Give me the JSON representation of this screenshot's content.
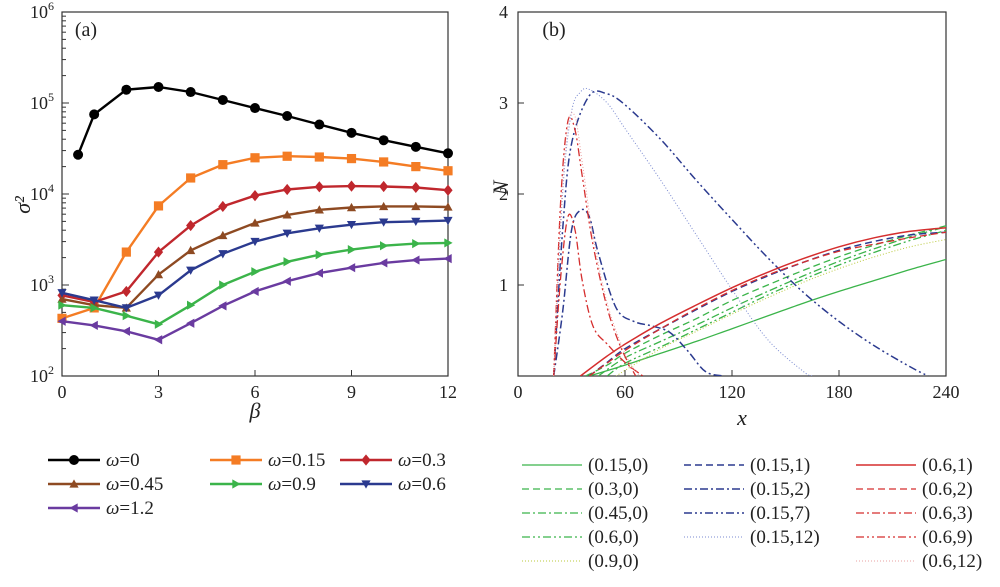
{
  "chart_data": [
    {
      "panel": "(a)",
      "type": "line",
      "xlabel": "β",
      "ylabel": "σ²",
      "xlim": [
        0,
        12
      ],
      "ylim": [
        100,
        1000000
      ],
      "y_scale": "log",
      "xticks": [
        "0",
        "3",
        "6",
        "9",
        "12"
      ],
      "yticks": [
        {
          "base": "10",
          "exp": "2",
          "value": 100
        },
        {
          "base": "10",
          "exp": "3",
          "value": 1000
        },
        {
          "base": "10",
          "exp": "4",
          "value": 10000
        },
        {
          "base": "10",
          "exp": "5",
          "value": 100000
        },
        {
          "base": "10",
          "exp": "6",
          "value": 1000000
        }
      ],
      "legend_placement": "below",
      "series": [
        {
          "label_sym": "ω",
          "label_val": "=0",
          "color": "#000000",
          "marker": "circle",
          "x": [
            0.5,
            1,
            2,
            3,
            4,
            5,
            6,
            7,
            8,
            9,
            10,
            11,
            12
          ],
          "y": [
            27000,
            75000,
            140000,
            150000,
            132000,
            108000,
            88000,
            72000,
            58000,
            47000,
            39000,
            33000,
            28000
          ]
        },
        {
          "label_sym": "ω",
          "label_val": "=0.15",
          "color": "#f47c24",
          "marker": "square",
          "x": [
            0,
            1,
            2,
            3,
            4,
            5,
            6,
            7,
            8,
            9,
            10,
            11,
            12
          ],
          "y": [
            430,
            560,
            2300,
            7400,
            15000,
            21000,
            25000,
            26000,
            25500,
            24500,
            22500,
            20000,
            18000
          ]
        },
        {
          "label_sym": "ω",
          "label_val": "=0.3",
          "color": "#c0272d",
          "marker": "diamond",
          "x": [
            0,
            1,
            2,
            3,
            4,
            5,
            6,
            7,
            8,
            9,
            10,
            11,
            12
          ],
          "y": [
            770,
            650,
            850,
            2300,
            4500,
            7300,
            9600,
            11200,
            12000,
            12200,
            12100,
            11800,
            11000
          ]
        },
        {
          "label_sym": "ω",
          "label_val": "=0.45",
          "color": "#8e4a22",
          "marker": "triangle-up",
          "x": [
            0,
            1,
            2,
            3,
            4,
            5,
            6,
            7,
            8,
            9,
            10,
            11,
            12
          ],
          "y": [
            700,
            600,
            560,
            1300,
            2400,
            3500,
            4800,
            5900,
            6700,
            7100,
            7300,
            7300,
            7200
          ]
        },
        {
          "label_sym": "ω",
          "label_val": "=0.9",
          "color": "#3bb44a",
          "marker": "triangle-right",
          "x": [
            0,
            1,
            2,
            3,
            4,
            5,
            6,
            7,
            8,
            9,
            10,
            11,
            12
          ],
          "y": [
            600,
            560,
            460,
            370,
            600,
            1000,
            1400,
            1800,
            2150,
            2450,
            2700,
            2850,
            2900
          ]
        },
        {
          "label_sym": "ω",
          "label_val": "=0.6",
          "color": "#2b3a8f",
          "marker": "triangle-down",
          "x": [
            0,
            1,
            2,
            3,
            4,
            5,
            6,
            7,
            8,
            9,
            10,
            11,
            12
          ],
          "y": [
            820,
            680,
            560,
            770,
            1450,
            2200,
            3000,
            3700,
            4200,
            4600,
            4900,
            5000,
            5100
          ]
        },
        {
          "label_sym": "ω",
          "label_val": "=1.2",
          "color": "#6a3ba0",
          "marker": "triangle-left",
          "x": [
            0,
            1,
            2,
            3,
            4,
            5,
            6,
            7,
            8,
            9,
            10,
            11,
            12
          ],
          "y": [
            400,
            360,
            310,
            250,
            380,
            590,
            850,
            1100,
            1350,
            1550,
            1750,
            1880,
            1950
          ]
        }
      ]
    },
    {
      "panel": "(b)",
      "type": "line",
      "xlabel": "x",
      "ylabel": "N",
      "xlim": [
        0,
        240
      ],
      "ylim": [
        0,
        4
      ],
      "xticks": [
        "0",
        "60",
        "120",
        "180",
        "240"
      ],
      "yticks": [
        "1",
        "2",
        "3",
        "4"
      ],
      "legend_placement": "below",
      "series": [
        {
          "name": "(0.15,0)",
          "color": "#3bb44a",
          "dash": "",
          "width": 1.3,
          "x": [
            40,
            60,
            80,
            100,
            120,
            140,
            160,
            180,
            200,
            220,
            240
          ],
          "y": [
            0,
            0.12,
            0.25,
            0.38,
            0.52,
            0.66,
            0.8,
            0.93,
            1.05,
            1.17,
            1.28
          ]
        },
        {
          "name": "(0.3,0)",
          "color": "#3bb44a",
          "dash": "7 4",
          "width": 1.3,
          "x": [
            38,
            50,
            60,
            80,
            100,
            120,
            140,
            160,
            180,
            200,
            220,
            240
          ],
          "y": [
            0,
            0.12,
            0.25,
            0.45,
            0.63,
            0.83,
            1.0,
            1.16,
            1.31,
            1.44,
            1.55,
            1.65
          ]
        },
        {
          "name": "(0.45,0)",
          "color": "#3bb44a",
          "dash": "8 3 2 3",
          "width": 1.3,
          "x": [
            45,
            60,
            80,
            100,
            120,
            140,
            160,
            180,
            200,
            220,
            240
          ],
          "y": [
            0,
            0.2,
            0.38,
            0.56,
            0.75,
            0.93,
            1.1,
            1.26,
            1.4,
            1.53,
            1.64
          ]
        },
        {
          "name": "(0.6,0)",
          "color": "#3bb44a",
          "dash": "8 3 2 3 2 3",
          "width": 1.3,
          "x": [
            50,
            60,
            80,
            100,
            120,
            140,
            160,
            180,
            200,
            220,
            240
          ],
          "y": [
            0,
            0.14,
            0.32,
            0.51,
            0.7,
            0.89,
            1.06,
            1.22,
            1.36,
            1.49,
            1.6
          ]
        },
        {
          "name": "(0.9,0)",
          "color": "#b9c93a",
          "dash": "1 2",
          "width": 1.0,
          "x": [
            55,
            80,
            100,
            120,
            140,
            160,
            180,
            200,
            220,
            240
          ],
          "y": [
            0,
            0.3,
            0.49,
            0.68,
            0.86,
            1.03,
            1.18,
            1.31,
            1.42,
            1.5
          ]
        },
        {
          "name": "(0.15,1)",
          "color": "#2b3a8f",
          "dash": "7 4",
          "width": 1.5,
          "x": [
            40,
            50,
            60,
            80,
            100,
            120,
            140,
            160,
            180,
            200,
            220,
            240
          ],
          "y": [
            0,
            0.15,
            0.3,
            0.52,
            0.73,
            0.93,
            1.1,
            1.25,
            1.38,
            1.48,
            1.55,
            1.58
          ]
        },
        {
          "name": "(0.15,2)",
          "color": "#2b3a8f",
          "dash": "8 3 2 3",
          "width": 1.5,
          "x": [
            20,
            25,
            30,
            35,
            40,
            45,
            55,
            65,
            75,
            85,
            95,
            105,
            115
          ],
          "y": [
            0,
            0.7,
            1.6,
            1.82,
            1.75,
            1.35,
            0.75,
            0.6,
            0.55,
            0.48,
            0.28,
            0.05,
            0
          ]
        },
        {
          "name": "(0.15,7)",
          "color": "#2b3a8f",
          "dash": "8 3 2 3 2 3",
          "width": 1.5,
          "x": [
            20,
            25,
            30,
            40,
            50,
            60,
            80,
            100,
            120,
            140,
            160,
            180,
            200,
            220,
            230
          ],
          "y": [
            0,
            1.6,
            2.55,
            3.08,
            3.1,
            2.98,
            2.6,
            2.15,
            1.72,
            1.3,
            0.92,
            0.6,
            0.33,
            0.1,
            0
          ]
        },
        {
          "name": "(0.15,12)",
          "color": "#7a8ad0",
          "dash": "1 2",
          "width": 1.0,
          "x": [
            20,
            25,
            30,
            35,
            40,
            50,
            60,
            80,
            100,
            120,
            140,
            160,
            165
          ],
          "y": [
            0,
            2.0,
            2.9,
            3.12,
            3.15,
            3.0,
            2.72,
            2.15,
            1.55,
            0.95,
            0.4,
            0.05,
            0
          ]
        },
        {
          "name": "(0.6,1)",
          "color": "#d52e2e",
          "dash": "",
          "width": 1.5,
          "x": [
            35,
            50,
            60,
            80,
            100,
            120,
            140,
            160,
            180,
            200,
            220,
            240
          ],
          "y": [
            0,
            0.22,
            0.35,
            0.58,
            0.78,
            0.97,
            1.14,
            1.29,
            1.42,
            1.52,
            1.59,
            1.63
          ]
        },
        {
          "name": "(0.6,2)",
          "color": "#d52e2e",
          "dash": "7 4",
          "width": 1.3,
          "x": [
            40,
            60,
            80,
            100,
            120,
            140,
            160,
            180,
            200,
            220,
            240
          ],
          "y": [
            0,
            0.28,
            0.52,
            0.74,
            0.94,
            1.11,
            1.25,
            1.37,
            1.45,
            1.52,
            1.58
          ]
        },
        {
          "name": "(0.6,3)",
          "color": "#d52e2e",
          "dash": "8 3 2 3",
          "width": 1.3,
          "x": [
            20,
            24,
            28,
            32,
            36,
            42,
            50,
            60,
            70
          ],
          "y": [
            0,
            1.1,
            1.75,
            1.6,
            1.05,
            0.55,
            0.35,
            0.15,
            0
          ]
        },
        {
          "name": "(0.6,9)",
          "color": "#d52e2e",
          "dash": "8 3 2 3 2 3",
          "width": 1.3,
          "x": [
            20,
            24,
            28,
            32,
            36,
            42,
            50,
            58,
            66
          ],
          "y": [
            0,
            1.95,
            2.8,
            2.7,
            2.2,
            1.45,
            0.75,
            0.3,
            0
          ]
        },
        {
          "name": "(0.6,12)",
          "color": "#e9a0a0",
          "dash": "1 2",
          "width": 1.0,
          "x": [
            20,
            24,
            28,
            32,
            36,
            42,
            50,
            60,
            68
          ],
          "y": [
            0,
            1.8,
            2.75,
            2.85,
            2.35,
            1.55,
            0.8,
            0.25,
            0
          ]
        }
      ]
    }
  ]
}
